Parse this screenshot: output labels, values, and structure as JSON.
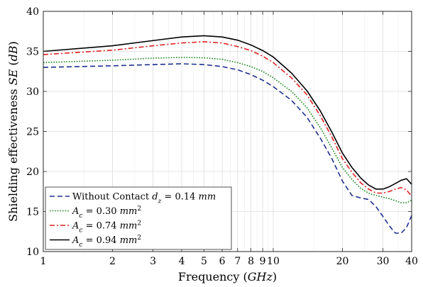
{
  "chart_data": {
    "type": "line",
    "xscale": "log",
    "xlim": [
      1,
      40
    ],
    "ylim": [
      10,
      40
    ],
    "grid": true,
    "xlabel": "Frequency (GHz)",
    "xlabel_parts": {
      "prefix": "Frequency (",
      "unit": "GHz",
      "suffix": ")"
    },
    "ylabel": "Shielding effectiveness SE (dB)",
    "ylabel_parts": {
      "prefix": "Shielding effectiveness ",
      "var": "SE",
      "unit": "dB"
    },
    "x_tick_labels": [
      "1",
      "2",
      "3",
      "4",
      "5",
      "6",
      "7",
      "8",
      "9",
      "10",
      "20",
      "30",
      "40"
    ],
    "y_tick_labels": [
      "10",
      "15",
      "20",
      "25",
      "30",
      "35",
      "40"
    ],
    "legend_position": "bottom-left",
    "series": [
      {
        "name": "Without Contact d_z = 0.14 mm",
        "legend": {
          "main": "Without Contact ",
          "var": "d",
          "sub": "z",
          "rest": " = 0.14 ",
          "unit": "mm"
        },
        "color": "#1f2f8f",
        "dash": "dashed",
        "points": [
          [
            1,
            33.0
          ],
          [
            2,
            33.2
          ],
          [
            3,
            33.35
          ],
          [
            4,
            33.45
          ],
          [
            5,
            33.35
          ],
          [
            6,
            33.1
          ],
          [
            7,
            32.7
          ],
          [
            8,
            32.1
          ],
          [
            9,
            31.4
          ],
          [
            10,
            30.6
          ],
          [
            12,
            28.9
          ],
          [
            14,
            26.8
          ],
          [
            16,
            24.2
          ],
          [
            18,
            21.6
          ],
          [
            20,
            18.8
          ],
          [
            22,
            17.0
          ],
          [
            24,
            16.7
          ],
          [
            26,
            16.5
          ],
          [
            28,
            15.6
          ],
          [
            30,
            14.4
          ],
          [
            32,
            13.2
          ],
          [
            34,
            12.3
          ],
          [
            36,
            12.3
          ],
          [
            38,
            13.0
          ],
          [
            40,
            14.5
          ]
        ]
      },
      {
        "name": "A_c = 0.30 mm^2",
        "legend": {
          "var": "A",
          "sub": "c",
          "rest": " = 0.30 ",
          "unit": "mm",
          "sup": "2"
        },
        "color": "#1a8a1a",
        "dash": "dotted",
        "points": [
          [
            1,
            33.6
          ],
          [
            2,
            33.9
          ],
          [
            3,
            34.15
          ],
          [
            4,
            34.25
          ],
          [
            5,
            34.2
          ],
          [
            6,
            34.0
          ],
          [
            7,
            33.6
          ],
          [
            8,
            33.1
          ],
          [
            9,
            32.5
          ],
          [
            10,
            31.7
          ],
          [
            12,
            30.0
          ],
          [
            14,
            28.0
          ],
          [
            16,
            25.5
          ],
          [
            18,
            22.9
          ],
          [
            20,
            20.5
          ],
          [
            22,
            19.0
          ],
          [
            24,
            17.9
          ],
          [
            26,
            17.3
          ],
          [
            28,
            17.0
          ],
          [
            30,
            16.8
          ],
          [
            32,
            16.6
          ],
          [
            34,
            16.35
          ],
          [
            36,
            16.1
          ],
          [
            38,
            16.1
          ],
          [
            40,
            16.4
          ]
        ]
      },
      {
        "name": "A_c = 0.74 mm^2",
        "legend": {
          "var": "A",
          "sub": "c",
          "rest": " = 0.74 ",
          "unit": "mm",
          "sup": "2"
        },
        "color": "#e02020",
        "dash": "dashdot",
        "points": [
          [
            1,
            34.6
          ],
          [
            2,
            35.15
          ],
          [
            3,
            35.7
          ],
          [
            4,
            36.05
          ],
          [
            5,
            36.2
          ],
          [
            6,
            36.05
          ],
          [
            7,
            35.6
          ],
          [
            8,
            35.1
          ],
          [
            9,
            34.4
          ],
          [
            10,
            33.6
          ],
          [
            12,
            31.7
          ],
          [
            14,
            29.6
          ],
          [
            16,
            27.0
          ],
          [
            18,
            24.3
          ],
          [
            20,
            21.6
          ],
          [
            22,
            19.9
          ],
          [
            24,
            18.6
          ],
          [
            26,
            17.8
          ],
          [
            28,
            17.3
          ],
          [
            30,
            17.3
          ],
          [
            32,
            17.5
          ],
          [
            34,
            17.8
          ],
          [
            36,
            18.0
          ],
          [
            38,
            17.7
          ],
          [
            40,
            16.9
          ]
        ]
      },
      {
        "name": "A_c = 0.94 mm^2",
        "legend": {
          "var": "A",
          "sub": "c",
          "rest": " = 0.94 ",
          "unit": "mm",
          "sup": "2"
        },
        "color": "#000000",
        "dash": "solid",
        "points": [
          [
            1,
            35.0
          ],
          [
            2,
            35.7
          ],
          [
            3,
            36.35
          ],
          [
            4,
            36.8
          ],
          [
            5,
            36.95
          ],
          [
            6,
            36.8
          ],
          [
            7,
            36.4
          ],
          [
            8,
            35.8
          ],
          [
            9,
            35.1
          ],
          [
            10,
            34.3
          ],
          [
            12,
            32.3
          ],
          [
            14,
            30.1
          ],
          [
            16,
            27.6
          ],
          [
            18,
            24.9
          ],
          [
            20,
            22.3
          ],
          [
            22,
            20.5
          ],
          [
            24,
            19.2
          ],
          [
            26,
            18.3
          ],
          [
            28,
            17.8
          ],
          [
            30,
            17.8
          ],
          [
            32,
            18.1
          ],
          [
            34,
            18.5
          ],
          [
            36,
            18.9
          ],
          [
            38,
            19.1
          ],
          [
            40,
            18.4
          ]
        ]
      }
    ]
  }
}
